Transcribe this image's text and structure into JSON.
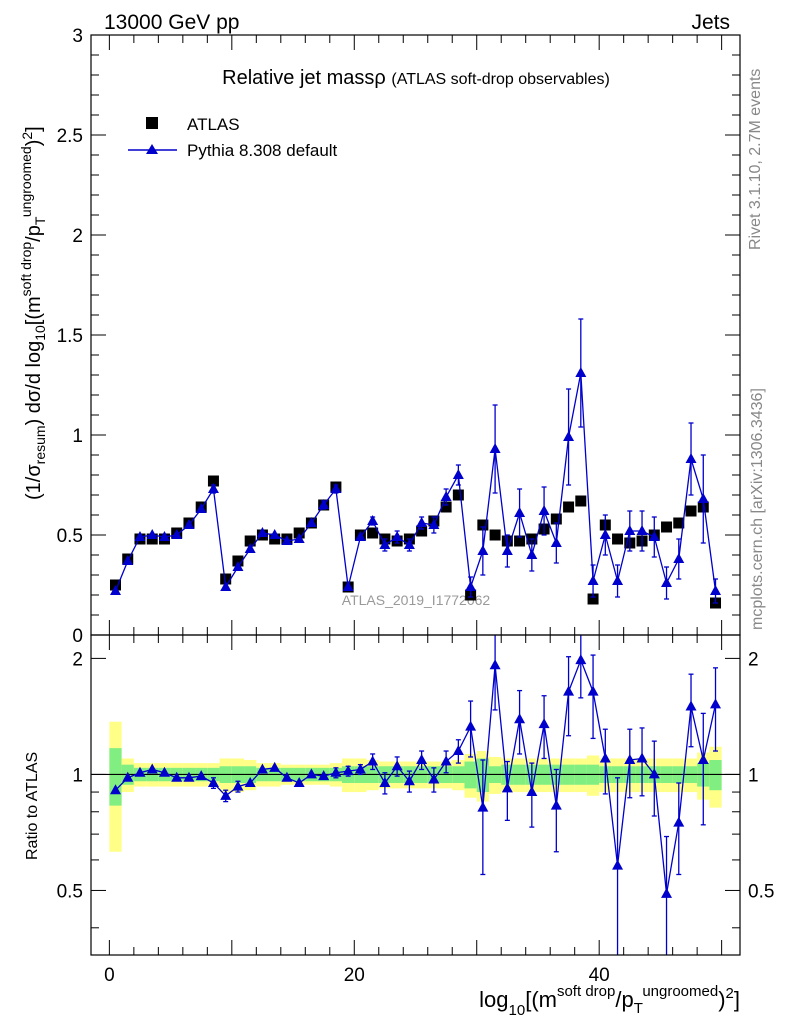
{
  "header": {
    "left": "13000 GeV pp",
    "right": "Jets"
  },
  "side_labels": {
    "rivet": "Rivet 3.1.10,  2.7M events",
    "mcplots": "mcplots.cern.ch [arXiv:1306.3436]"
  },
  "watermark": "ATLAS_2019_I1772062",
  "colors": {
    "data": "#000000",
    "mc": "#0000cc",
    "band_inner": "#80ee80",
    "band_outer": "#ffff88"
  },
  "chart_data": [
    {
      "type": "scatter",
      "title": "Relative jet massρ",
      "subtitle": "(ATLAS soft-drop observables)",
      "ylabel": "(1/σresum) dσ/d log10[(m^soft drop/pT^ungroomed)2]",
      "xlim": [
        -1.5,
        51.5
      ],
      "ylim": [
        0,
        3
      ],
      "yticks": [
        0,
        0.5,
        1,
        1.5,
        2,
        2.5,
        3
      ],
      "xticks": [
        0,
        20,
        40
      ],
      "legend_position": "top-left",
      "x": [
        0.5,
        1.5,
        2.5,
        3.5,
        4.5,
        5.5,
        6.5,
        7.5,
        8.5,
        9.5,
        10.5,
        11.5,
        12.5,
        13.5,
        14.5,
        15.5,
        16.5,
        17.5,
        18.5,
        19.5,
        20.5,
        21.5,
        22.5,
        23.5,
        24.5,
        25.5,
        26.5,
        27.5,
        28.5,
        29.5,
        30.5,
        31.5,
        32.5,
        33.5,
        34.5,
        35.5,
        36.5,
        37.5,
        38.5,
        39.5,
        40.5,
        41.5,
        42.5,
        43.5,
        44.5,
        45.5,
        46.5,
        47.5,
        48.5,
        49.5
      ],
      "series": [
        {
          "name": "ATLAS",
          "values": [
            0.25,
            0.38,
            0.48,
            0.48,
            0.48,
            0.51,
            0.56,
            0.64,
            0.77,
            0.28,
            0.37,
            0.47,
            0.5,
            0.48,
            0.48,
            0.51,
            0.56,
            0.65,
            0.74,
            0.24,
            0.5,
            0.51,
            0.48,
            0.47,
            0.48,
            0.52,
            0.57,
            0.64,
            0.7,
            0.2,
            0.55,
            0.5,
            0.47,
            0.47,
            0.48,
            0.53,
            0.58,
            0.64,
            0.67,
            0.18,
            0.55,
            0.48,
            0.46,
            0.47,
            0.5,
            0.54,
            0.56,
            0.62,
            0.64,
            0.16
          ]
        },
        {
          "name": "Pythia 8.308 default",
          "values": [
            0.22,
            0.37,
            0.49,
            0.5,
            0.49,
            0.5,
            0.55,
            0.63,
            0.73,
            0.24,
            0.34,
            0.43,
            0.51,
            0.5,
            0.47,
            0.48,
            0.56,
            0.65,
            0.73,
            0.24,
            0.49,
            0.57,
            0.45,
            0.49,
            0.45,
            0.56,
            0.55,
            0.69,
            0.8,
            0.24,
            0.42,
            0.93,
            0.42,
            0.61,
            0.4,
            0.62,
            0.46,
            0.99,
            1.31,
            0.27,
            0.5,
            0.27,
            0.52,
            0.52,
            0.49,
            0.26,
            0.38,
            0.88,
            0.68,
            0.22
          ],
          "errors": [
            0.01,
            0.01,
            0.01,
            0.01,
            0.01,
            0.01,
            0.01,
            0.01,
            0.02,
            0.01,
            0.01,
            0.01,
            0.01,
            0.01,
            0.01,
            0.01,
            0.01,
            0.02,
            0.02,
            0.01,
            0.01,
            0.02,
            0.03,
            0.03,
            0.03,
            0.03,
            0.04,
            0.04,
            0.05,
            0.05,
            0.12,
            0.22,
            0.08,
            0.12,
            0.08,
            0.12,
            0.1,
            0.24,
            0.27,
            0.08,
            0.1,
            0.08,
            0.1,
            0.1,
            0.1,
            0.08,
            0.1,
            0.18,
            0.22,
            0.06
          ]
        }
      ]
    },
    {
      "type": "scatter",
      "ylabel": "Ratio to ATLAS",
      "xlabel": "log10[(m^soft drop/pT^ungroomed)2]",
      "ylim": [
        0.34,
        2.3
      ],
      "yticks": [
        0.5,
        1,
        2
      ],
      "x": [
        0.5,
        1.5,
        2.5,
        3.5,
        4.5,
        5.5,
        6.5,
        7.5,
        8.5,
        9.5,
        10.5,
        11.5,
        12.5,
        13.5,
        14.5,
        15.5,
        16.5,
        17.5,
        18.5,
        19.5,
        20.5,
        21.5,
        22.5,
        23.5,
        24.5,
        25.5,
        26.5,
        27.5,
        28.5,
        29.5,
        30.5,
        31.5,
        32.5,
        33.5,
        34.5,
        35.5,
        36.5,
        37.5,
        38.5,
        39.5,
        40.5,
        41.5,
        42.5,
        43.5,
        44.5,
        45.5,
        46.5,
        47.5,
        48.5,
        49.5
      ],
      "series": [
        {
          "name": "Pythia 8.308 default",
          "values": [
            0.91,
            0.98,
            1.01,
            1.03,
            1.01,
            0.98,
            0.98,
            0.99,
            0.95,
            0.88,
            0.93,
            0.95,
            1.03,
            1.04,
            0.98,
            0.95,
            1.0,
            0.99,
            1.01,
            1.02,
            1.03,
            1.08,
            0.95,
            1.05,
            0.96,
            1.09,
            0.97,
            1.08,
            1.15,
            1.33,
            0.82,
            1.92,
            0.92,
            1.39,
            0.9,
            1.35,
            0.83,
            1.64,
            1.98,
            1.64,
            1.1,
            0.58,
            1.09,
            1.1,
            1.0,
            0.49,
            0.75,
            1.5,
            1.09,
            1.52
          ],
          "errors": [
            0.02,
            0.02,
            0.02,
            0.02,
            0.02,
            0.02,
            0.02,
            0.02,
            0.03,
            0.03,
            0.03,
            0.02,
            0.02,
            0.02,
            0.02,
            0.02,
            0.02,
            0.02,
            0.03,
            0.03,
            0.03,
            0.05,
            0.06,
            0.06,
            0.06,
            0.06,
            0.07,
            0.07,
            0.08,
            0.22,
            0.27,
            0.45,
            0.16,
            0.26,
            0.17,
            0.25,
            0.2,
            0.38,
            0.4,
            0.4,
            0.21,
            0.4,
            0.22,
            0.22,
            0.22,
            0.2,
            0.2,
            0.32,
            0.35,
            0.37
          ]
        }
      ],
      "band_inner_halfwidth": [
        0.17,
        0.06,
        0.04,
        0.04,
        0.04,
        0.04,
        0.04,
        0.04,
        0.04,
        0.05,
        0.05,
        0.05,
        0.04,
        0.04,
        0.04,
        0.04,
        0.04,
        0.04,
        0.04,
        0.05,
        0.05,
        0.05,
        0.05,
        0.05,
        0.05,
        0.05,
        0.05,
        0.05,
        0.05,
        0.08,
        0.1,
        0.05,
        0.06,
        0.06,
        0.06,
        0.06,
        0.06,
        0.06,
        0.06,
        0.06,
        0.05,
        0.05,
        0.05,
        0.05,
        0.05,
        0.05,
        0.05,
        0.05,
        0.07,
        0.09
      ],
      "band_outer_halfwidth": [
        0.37,
        0.1,
        0.07,
        0.07,
        0.07,
        0.07,
        0.07,
        0.07,
        0.07,
        0.1,
        0.1,
        0.09,
        0.07,
        0.07,
        0.06,
        0.06,
        0.06,
        0.06,
        0.07,
        0.1,
        0.1,
        0.09,
        0.08,
        0.08,
        0.08,
        0.08,
        0.08,
        0.08,
        0.09,
        0.13,
        0.15,
        0.11,
        0.1,
        0.1,
        0.1,
        0.1,
        0.1,
        0.1,
        0.1,
        0.12,
        0.1,
        0.1,
        0.1,
        0.1,
        0.1,
        0.1,
        0.1,
        0.1,
        0.14,
        0.18
      ]
    }
  ]
}
